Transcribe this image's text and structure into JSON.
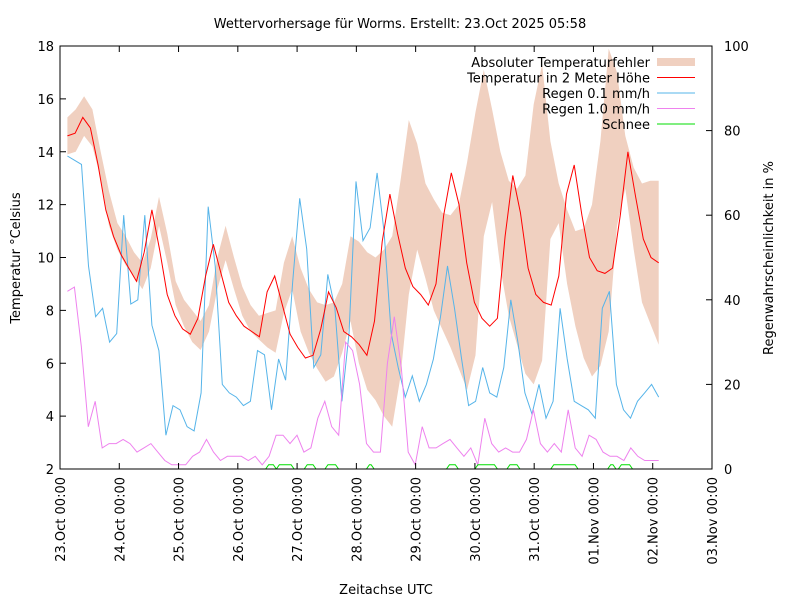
{
  "chart_data": {
    "type": "line",
    "title": "Wettervorhersage für Worms. Erstellt: 23.Oct 2025 05:58",
    "xlabel": "Zeitachse UTC",
    "ylabel": "Temperatur °Celsius",
    "y2label": "Regenwahrscheinlichkeit in %",
    "ylim": [
      2,
      18
    ],
    "y2lim": [
      0,
      100
    ],
    "xlim_days": [
      0,
      11
    ],
    "yticks": [
      "2",
      "4",
      "6",
      "8",
      "10",
      "12",
      "14",
      "16",
      "18"
    ],
    "y2ticks": [
      "0",
      "20",
      "40",
      "60",
      "80",
      "100"
    ],
    "xticks": [
      "23.Oct 00:00",
      "24.Oct 00:00",
      "25.Oct 00:00",
      "26.Oct 00:00",
      "27.Oct 00:00",
      "28.Oct 00:00",
      "29.Oct 00:00",
      "30.Oct 00:00",
      "31.Oct 00:00",
      "01.Nov 00:00",
      "02.Nov 00:00",
      "03.Nov 00:00"
    ],
    "grid": false,
    "legend_position": "top-right",
    "x_unit": "days since 23.Oct 00:00 UTC, 3-hour steps starting at 0.125",
    "x_start": 0.125,
    "x_step": 0.125,
    "series": [
      {
        "name": "Absoluter Temperaturfehler",
        "kind": "band",
        "axis": "left",
        "color": "#f0d0c0",
        "lower": [
          13.9,
          14.0,
          14.6,
          14.2,
          13.0,
          11.2,
          10.3,
          9.7,
          9.3,
          8.8,
          9.6,
          11.2,
          9.8,
          8.2,
          7.4,
          6.8,
          6.5,
          7.2,
          8.8,
          9.9,
          8.8,
          7.8,
          7.2,
          6.9,
          6.6,
          6.4,
          7.9,
          8.8,
          7.2,
          6.4,
          5.8,
          5.3,
          5.5,
          6.4,
          7.6,
          6.0,
          5.0,
          4.6,
          4.0,
          3.6,
          5.5,
          8.6,
          10.3,
          9.2,
          8.0,
          7.3,
          6.6,
          5.8,
          5.0,
          6.3,
          10.8,
          12.1,
          9.6,
          7.8,
          6.7,
          5.6,
          5.2,
          6.1,
          10.7,
          11.3,
          9.0,
          7.4,
          6.2,
          5.5,
          5.9,
          7.2,
          11.2,
          12.6,
          10.3,
          8.3,
          7.5,
          6.7
        ],
        "upper": [
          15.3,
          15.6,
          16.1,
          15.6,
          14.0,
          12.5,
          11.3,
          10.8,
          10.2,
          9.8,
          10.7,
          12.3,
          10.9,
          9.1,
          8.4,
          8.0,
          7.6,
          8.2,
          10.0,
          11.2,
          10.0,
          8.9,
          8.2,
          7.8,
          7.9,
          8.0,
          9.8,
          10.8,
          9.6,
          8.8,
          8.3,
          8.2,
          8.3,
          9.0,
          10.8,
          10.6,
          10.2,
          10.0,
          10.3,
          10.8,
          12.9,
          15.2,
          14.3,
          12.8,
          12.2,
          11.7,
          11.6,
          12.0,
          13.6,
          15.5,
          17.1,
          15.6,
          14.0,
          12.9,
          12.6,
          13.1,
          15.8,
          17.3,
          14.4,
          12.8,
          11.8,
          11.0,
          11.1,
          12.0,
          14.4,
          17.9,
          17.0,
          14.6,
          13.4,
          12.8,
          12.9,
          12.9
        ]
      },
      {
        "name": "Temperatur in 2 Meter Höhe",
        "kind": "line",
        "axis": "left",
        "color": "#ff0000",
        "values": [
          14.6,
          14.7,
          15.3,
          14.9,
          13.5,
          11.8,
          10.8,
          10.1,
          9.6,
          9.1,
          10.2,
          11.8,
          10.3,
          8.6,
          7.8,
          7.3,
          7.1,
          7.7,
          9.3,
          10.5,
          9.4,
          8.3,
          7.8,
          7.4,
          7.2,
          7.0,
          8.7,
          9.3,
          8.2,
          7.1,
          6.6,
          6.2,
          6.3,
          7.3,
          8.7,
          8.1,
          7.2,
          7.0,
          6.7,
          6.3,
          7.6,
          10.6,
          12.4,
          10.9,
          9.6,
          8.9,
          8.6,
          8.2,
          9.0,
          11.6,
          13.2,
          12.0,
          9.8,
          8.3,
          7.7,
          7.4,
          7.7,
          10.8,
          13.1,
          11.7,
          9.6,
          8.6,
          8.3,
          8.2,
          9.3,
          12.4,
          13.5,
          11.6,
          10.0,
          9.5,
          9.4,
          9.6,
          11.6,
          14.0,
          12.3,
          10.7,
          10.0,
          9.8
        ]
      },
      {
        "name": "Regen 0.1 mm/h",
        "kind": "line",
        "axis": "right",
        "color": "#56b4e9",
        "values": [
          74,
          73,
          72,
          48,
          36,
          38,
          30,
          32,
          60,
          39,
          40,
          60,
          34,
          28,
          8,
          15,
          14,
          10,
          9,
          18,
          62,
          48,
          20,
          18,
          17,
          15,
          16,
          28,
          27,
          14,
          26,
          21,
          44,
          64,
          52,
          24,
          27,
          46,
          38,
          16,
          32,
          68,
          54,
          57,
          70,
          56,
          32,
          24,
          17,
          22,
          16,
          20,
          26,
          36,
          48,
          38,
          26,
          15,
          16,
          24,
          18,
          17,
          24,
          40,
          30,
          18,
          13,
          20,
          12,
          16,
          38,
          26,
          16,
          15,
          14,
          12,
          38,
          42,
          20,
          14,
          12,
          16,
          18,
          20,
          17
        ],
        "note": "last samples decimated to ~3h steps"
      },
      {
        "name": "Regen 1.0 mm/h",
        "kind": "line",
        "axis": "right",
        "color": "#ee82ee",
        "values": [
          42,
          43,
          29,
          10,
          16,
          5,
          6,
          6,
          7,
          6,
          4,
          5,
          6,
          4,
          2,
          1,
          1,
          1,
          3,
          4,
          7,
          4,
          2,
          3,
          3,
          3,
          2,
          3,
          1,
          3,
          8,
          8,
          6,
          8,
          4,
          5,
          12,
          16,
          10,
          8,
          30,
          28,
          20,
          6,
          4,
          4,
          25,
          36,
          24,
          4,
          1,
          10,
          5,
          5,
          6,
          7,
          5,
          3,
          5,
          1,
          12,
          6,
          4,
          5,
          4,
          4,
          7,
          14,
          6,
          4,
          6,
          4,
          14,
          5,
          3,
          8,
          7,
          4,
          3,
          3,
          2,
          5,
          3,
          2,
          2,
          2
        ],
        "note": "last samples decimated to ~3h steps"
      },
      {
        "name": "Schnee",
        "kind": "line",
        "axis": "right",
        "color": "#00dd00",
        "note": "small bumps near 0-1% at bottom between 26.Oct and 02.Nov",
        "segments_days": [
          [
            3.47,
            3.65
          ],
          [
            3.65,
            3.95
          ],
          [
            4.12,
            4.32
          ],
          [
            4.47,
            4.7
          ],
          [
            5.17,
            5.3
          ],
          [
            6.52,
            6.72
          ],
          [
            7.0,
            7.38
          ],
          [
            7.54,
            7.76
          ],
          [
            8.28,
            8.74
          ],
          [
            9.24,
            9.38
          ],
          [
            9.42,
            9.66
          ]
        ],
        "value": 1
      }
    ]
  }
}
